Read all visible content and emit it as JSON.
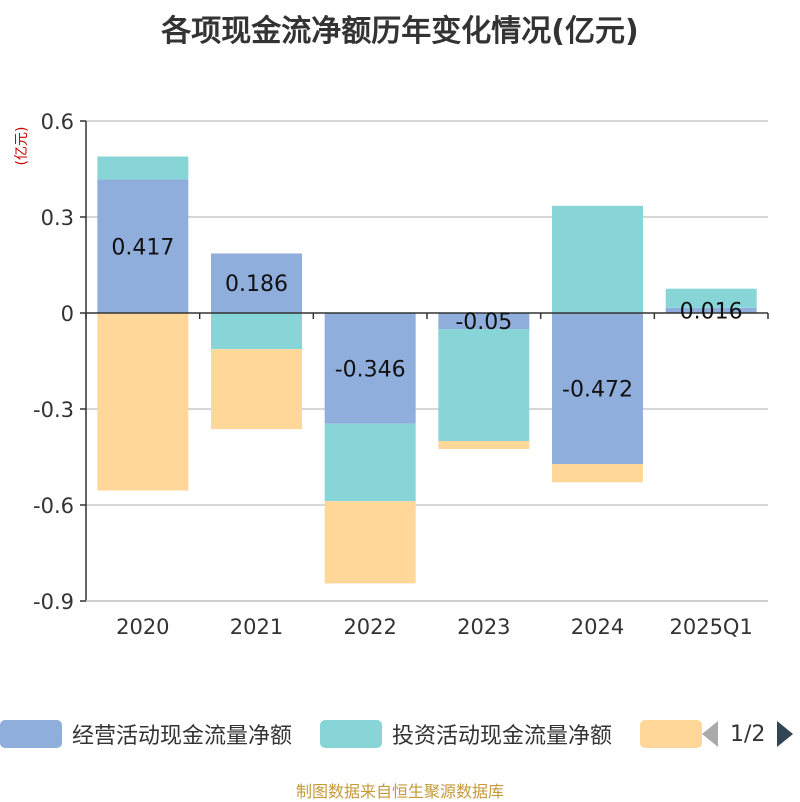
{
  "title": "各项现金流净额历年变化情况(亿元)",
  "footer": "制图数据来自恒生聚源数据库",
  "legend": {
    "items": [
      {
        "label": "经营活动现金流量净额",
        "color": "#8faedc"
      },
      {
        "label": "投资活动现金流量净额",
        "color": "#88d5d8"
      },
      {
        "label": "",
        "color": "#ffd899"
      }
    ],
    "page": "1/2",
    "prev_icon": "triangle-left-icon",
    "next_icon": "triangle-right-icon"
  },
  "chart_data": {
    "type": "bar",
    "stacked": true,
    "title": "各项现金流净额历年变化情况(亿元)",
    "ylabel": "(亿元)",
    "xlabel": "",
    "ylim": [
      -0.9,
      0.6
    ],
    "yticks": [
      0.6,
      0.3,
      0,
      -0.3,
      -0.6,
      -0.9
    ],
    "ytick_labels": [
      "0.6",
      "0.3",
      "0",
      "-0.3",
      "-0.6",
      "-0.9"
    ],
    "categories": [
      "2020",
      "2021",
      "2022",
      "2023",
      "2024",
      "2025Q1"
    ],
    "series": [
      {
        "name": "经营活动现金流量净额",
        "color": "#8faedc",
        "values": [
          0.417,
          0.186,
          -0.346,
          -0.05,
          -0.472,
          0.016
        ],
        "labels": [
          "0.417",
          "0.186",
          "-0.346",
          "-0.05",
          "-0.472",
          "0.016"
        ]
      },
      {
        "name": "投资活动现金流量净额",
        "color": "#88d5d8",
        "values": [
          0.072,
          -0.113,
          -0.242,
          -0.35,
          0.335,
          0.06
        ]
      },
      {
        "name": "",
        "color": "#ffd899",
        "values": [
          -0.555,
          -0.25,
          -0.257,
          -0.025,
          -0.057,
          0
        ]
      }
    ],
    "grid": true,
    "legend_position": "bottom"
  }
}
